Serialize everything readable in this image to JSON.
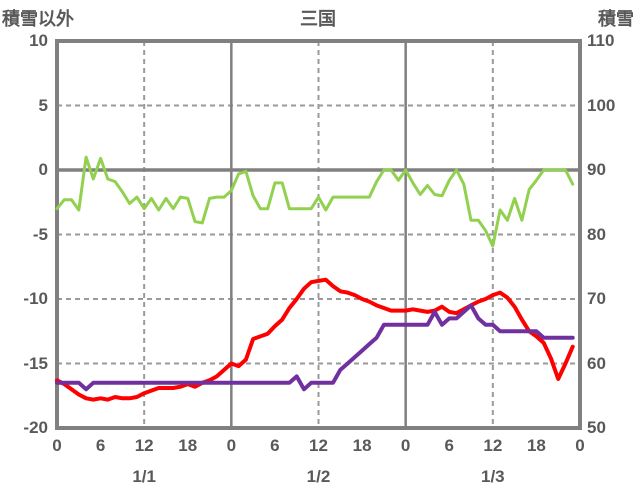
{
  "titles": {
    "left": "積雪以外",
    "center": "三国",
    "right": "積雪"
  },
  "colors": {
    "green_line": "#92d050",
    "red_line": "#ff0000",
    "purple_line": "#7030a0",
    "grid_solid": "#808080",
    "grid_dashed": "#9a9a9a",
    "border": "#808080",
    "text": "#595959",
    "background": "#ffffff"
  },
  "chart_data": {
    "type": "line",
    "title": "三国",
    "left_axis": {
      "title": "積雪以外",
      "min": -20,
      "max": 10,
      "ticks": [
        10,
        5,
        0,
        -5,
        -10,
        -15,
        -20
      ]
    },
    "right_axis": {
      "title": "積雪",
      "min": 50,
      "max": 110,
      "ticks": [
        110,
        100,
        90,
        80,
        70,
        60,
        50
      ]
    },
    "x_axis": {
      "hours_range": [
        0,
        72
      ],
      "tick_hours": [
        0,
        6,
        12,
        18,
        24,
        30,
        36,
        42,
        48,
        54,
        60,
        66,
        72
      ],
      "tick_labels": [
        "0",
        "6",
        "12",
        "18",
        "0",
        "6",
        "12",
        "18",
        "0",
        "6",
        "12",
        "18",
        "0"
      ],
      "day_labels": [
        {
          "label": "1/1",
          "hour": 12
        },
        {
          "label": "1/2",
          "hour": 36
        },
        {
          "label": "1/3",
          "hour": 60
        }
      ]
    },
    "grid": {
      "h_solid_values": [
        0
      ],
      "h_dashed_values": [
        5,
        -5,
        -10,
        -15
      ],
      "v_solid_hours": [
        24,
        48
      ],
      "v_dashed_hours": [
        12,
        36,
        60
      ]
    },
    "legend": "none",
    "series": [
      {
        "name": "green-line",
        "axis": "left",
        "color": "#92d050",
        "stroke_width": 3,
        "start_hour": 0,
        "values": [
          -3.0,
          -2.3,
          -2.3,
          -3.1,
          1.0,
          -0.7,
          0.9,
          -0.7,
          -0.9,
          -1.7,
          -2.6,
          -2.1,
          -3.0,
          -2.2,
          -3.1,
          -2.2,
          -3.0,
          -2.1,
          -2.2,
          -4.0,
          -4.1,
          -2.2,
          -2.1,
          -2.1,
          -1.6,
          -0.3,
          -0.1,
          -2.0,
          -3.0,
          -3.0,
          -1.0,
          -1.0,
          -3.0,
          -3.0,
          -3.0,
          -3.0,
          -2.1,
          -3.1,
          -2.1,
          -2.1,
          -2.1,
          -2.1,
          -2.1,
          -2.1,
          -0.9,
          0.0,
          0.0,
          -0.8,
          0.0,
          -1.0,
          -1.9,
          -1.2,
          -1.9,
          -2.0,
          -0.8,
          0.0,
          -1.1,
          -3.9,
          -3.9,
          -4.7,
          -5.9,
          -3.1,
          -3.9,
          -2.2,
          -3.9,
          -1.5,
          -0.8,
          0.0,
          0.0,
          0.0,
          0.0,
          -1.1
        ]
      },
      {
        "name": "red-line",
        "axis": "left",
        "color": "#ff0000",
        "stroke_width": 4,
        "start_hour": 0,
        "values": [
          -16.3,
          -16.6,
          -17.0,
          -17.4,
          -17.7,
          -17.8,
          -17.7,
          -17.8,
          -17.6,
          -17.7,
          -17.7,
          -17.6,
          -17.3,
          -17.1,
          -16.9,
          -16.9,
          -16.9,
          -16.8,
          -16.6,
          -16.8,
          -16.5,
          -16.3,
          -16.0,
          -15.5,
          -15.0,
          -15.2,
          -14.7,
          -13.1,
          -12.9,
          -12.7,
          -12.1,
          -11.6,
          -10.7,
          -10.0,
          -9.2,
          -8.7,
          -8.6,
          -8.5,
          -9.0,
          -9.4,
          -9.5,
          -9.7,
          -10.0,
          -10.2,
          -10.5,
          -10.7,
          -10.9,
          -10.9,
          -10.9,
          -10.8,
          -10.9,
          -11.0,
          -10.9,
          -10.6,
          -11.0,
          -11.1,
          -10.8,
          -10.5,
          -10.2,
          -10.0,
          -9.7,
          -9.5,
          -9.9,
          -10.6,
          -11.6,
          -12.5,
          -12.9,
          -13.4,
          -14.6,
          -16.2,
          -15.0,
          -13.7
        ]
      },
      {
        "name": "purple-line",
        "axis": "right",
        "color": "#7030a0",
        "stroke_width": 4,
        "start_hour": 0,
        "values": [
          57,
          57,
          57,
          57,
          56,
          57,
          57,
          57,
          57,
          57,
          57,
          57,
          57,
          57,
          57,
          57,
          57,
          57,
          57,
          57,
          57,
          57,
          57,
          57,
          57,
          57,
          57,
          57,
          57,
          57,
          57,
          57,
          57,
          58,
          56,
          57,
          57,
          57,
          57,
          59,
          60,
          61,
          62,
          63,
          64,
          66,
          66,
          66,
          66,
          66,
          66,
          66,
          68,
          66,
          67,
          67,
          68,
          69,
          67,
          66,
          66,
          65,
          65,
          65,
          65,
          65,
          65,
          64,
          64,
          64,
          64,
          64
        ]
      }
    ]
  }
}
